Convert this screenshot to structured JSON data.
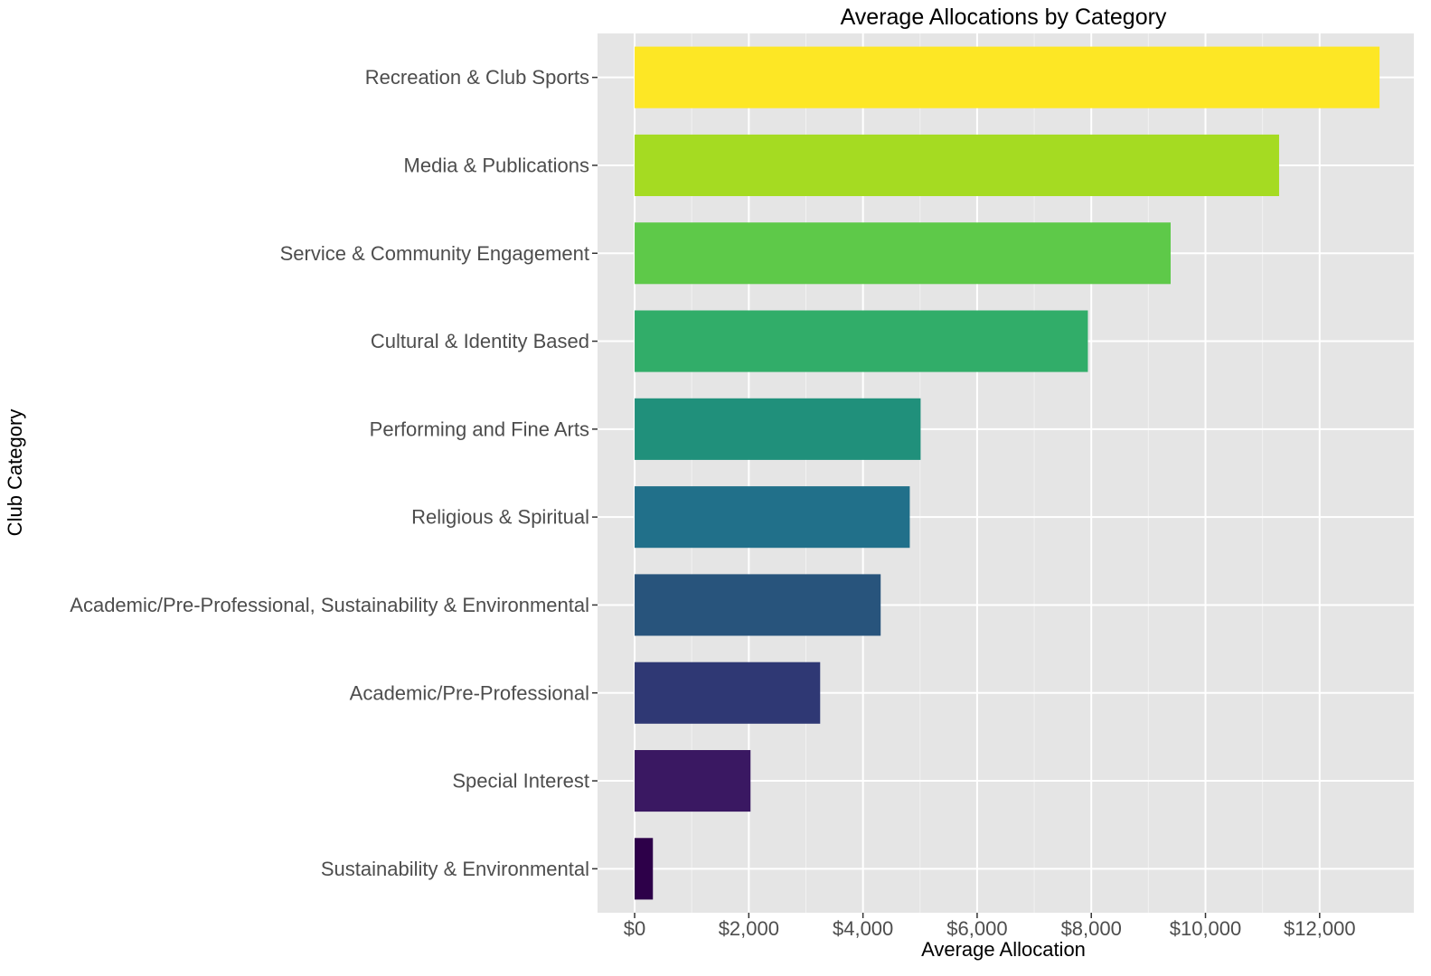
{
  "chart_data": {
    "type": "bar",
    "orientation": "horizontal",
    "title": "Average Allocations by Category",
    "xlabel": "Average Allocation",
    "ylabel": "Club Category",
    "xlim": [
      -650,
      13650
    ],
    "xticks": [
      0,
      2000,
      4000,
      6000,
      8000,
      10000,
      12000
    ],
    "xtick_labels": [
      "$0",
      "$2,000",
      "$4,000",
      "$6,000",
      "$8,000",
      "$10,000",
      "$12,000"
    ],
    "grid": true,
    "legend": "none",
    "panel_background": "#e5e5e5",
    "categories": [
      "Recreation & Club Sports",
      "Media & Publications",
      "Service & Community Engagement",
      "Cultural & Identity Based",
      "Performing and Fine Arts",
      "Religious & Spiritual",
      "Academic/Pre-Professional, Sustainability & Environmental",
      "Academic/Pre-Professional",
      "Special Interest",
      "Sustainability & Environmental"
    ],
    "values": [
      13050,
      11290,
      9390,
      7940,
      5010,
      4820,
      4310,
      3250,
      2030,
      320
    ],
    "colors": [
      "#fde725",
      "#a5db22",
      "#5ec949",
      "#31ad69",
      "#20907b",
      "#21708a",
      "#28547c",
      "#2f3874",
      "#3a1862",
      "#2d0049"
    ]
  }
}
